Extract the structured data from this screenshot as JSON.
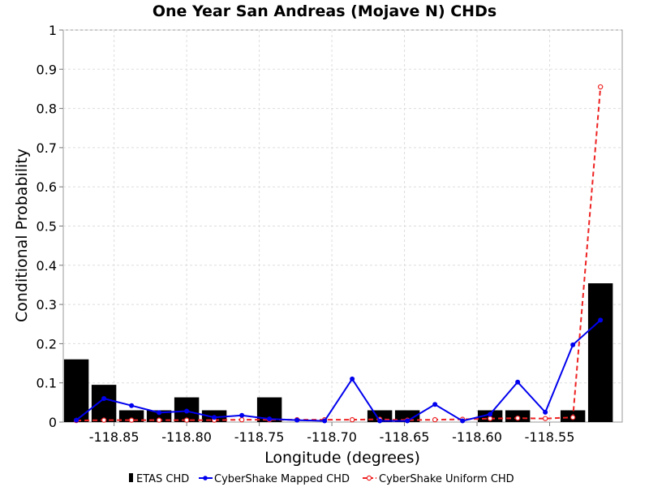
{
  "chart_data": {
    "type": "bar",
    "title": "One Year San Andreas (Mojave N) CHDs",
    "xlabel": "Longitude (degrees)",
    "ylabel": "Conditional Probability",
    "xlim": [
      -118.885,
      -118.5
    ],
    "ylim": [
      0,
      1
    ],
    "x_ticks": [
      -118.85,
      -118.8,
      -118.75,
      -118.7,
      -118.65,
      -118.6,
      -118.55
    ],
    "x_tick_labels": [
      "-118.85",
      "-118.80",
      "-118.75",
      "-118.70",
      "-118.65",
      "-118.60",
      "-118.55"
    ],
    "y_ticks": [
      0,
      0.1,
      0.2,
      0.3,
      0.4,
      0.5,
      0.6,
      0.7,
      0.8,
      0.9,
      1
    ],
    "y_tick_labels": [
      "0",
      "0.1",
      "0.2",
      "0.3",
      "0.4",
      "0.5",
      "0.6",
      "0.7",
      "0.8",
      "0.9",
      "1"
    ],
    "grid": true,
    "legend_position": "bottom",
    "bar_width_deg": 0.017,
    "x": [
      -118.876,
      -118.857,
      -118.838,
      -118.819,
      -118.8,
      -118.781,
      -118.762,
      -118.743,
      -118.724,
      -118.705,
      -118.686,
      -118.667,
      -118.648,
      -118.629,
      -118.61,
      -118.591,
      -118.572,
      -118.553,
      -118.534,
      -118.515
    ],
    "series": [
      {
        "name": "ETAS CHD",
        "kind": "bar",
        "color": "#000000",
        "values": [
          0.16,
          0.095,
          0.03,
          0.03,
          0.063,
          0.03,
          0.0,
          0.063,
          0.0,
          0.0,
          0.0,
          0.03,
          0.03,
          0.0,
          0.0,
          0.03,
          0.03,
          0.0,
          0.03,
          0.354
        ]
      },
      {
        "name": "CyberShake Mapped CHD",
        "kind": "line",
        "color": "#0000ee",
        "values": [
          0.005,
          0.06,
          0.042,
          0.024,
          0.028,
          0.012,
          0.017,
          0.008,
          0.005,
          0.003,
          0.11,
          0.003,
          0.003,
          0.045,
          0.003,
          0.02,
          0.102,
          0.025,
          0.197,
          0.26
        ]
      },
      {
        "name": "CyberShake Uniform CHD",
        "kind": "dashed-line",
        "color": "#ee2222",
        "values": [
          0.004,
          0.005,
          0.005,
          0.005,
          0.005,
          0.005,
          0.006,
          0.006,
          0.006,
          0.006,
          0.006,
          0.007,
          0.005,
          0.006,
          0.007,
          0.009,
          0.01,
          0.009,
          0.012,
          0.855
        ]
      }
    ]
  }
}
